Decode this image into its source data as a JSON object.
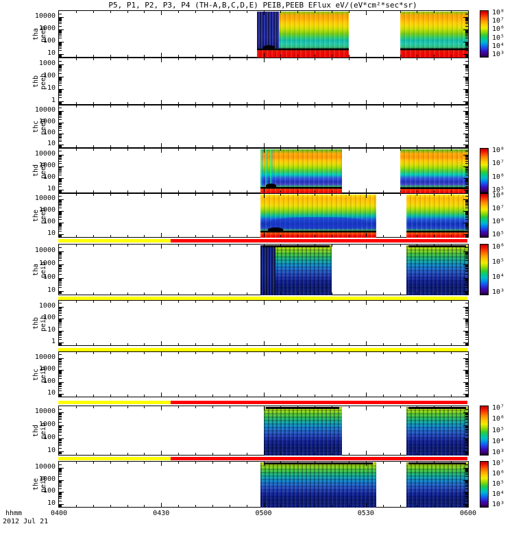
{
  "chart_data": {
    "type": "heatmap",
    "title": "P5, P1, P2, P3, P4 (TH-A,B,C,D,E) PEIB,PEEB EFlux eV/(eV*cm²*sec*sr)",
    "xlabel": "hhmm",
    "date": "2012 Jul 21",
    "x_ticks": [
      "0400",
      "0430",
      "0500",
      "0530",
      "0600"
    ],
    "x_range_hhmm": [
      "0400",
      "0600"
    ],
    "x_minor_step_min": 5,
    "yscale": "log",
    "legend_position": "right-colorbars",
    "grid": false,
    "panels": [
      {
        "id": "tha-peeb",
        "label_lines": [
          "tha",
          "peeb"
        ],
        "ylabel": "tha peeb",
        "yticks": [
          "10000",
          "1000",
          "100",
          "10"
        ],
        "colorbar_ticks": [
          "10⁸",
          "10⁷",
          "10⁶",
          "10⁵",
          "10⁴",
          "10³"
        ],
        "palette": "peeb1",
        "blocks": [
          {
            "start": "0458",
            "end": "0525",
            "features": [
              "dark-lead",
              "trace",
              "hump"
            ],
            "trace_frac": 0.8
          },
          {
            "start": "0540",
            "end": "0600",
            "features": [
              "trace"
            ],
            "trace_frac": 0.8
          }
        ]
      },
      {
        "id": "thb-peeb",
        "label_lines": [
          "thb",
          "peeb"
        ],
        "ylabel": "thb peeb",
        "yticks": [
          "1000",
          "100",
          "10",
          "1"
        ],
        "colorbar_ticks": null,
        "palette": null,
        "blocks": []
      },
      {
        "id": "thc-peeb",
        "label_lines": [
          "thc",
          "peeb"
        ],
        "ylabel": "thc peeb",
        "yticks": [
          "10000",
          "1000",
          "100",
          "10"
        ],
        "colorbar_ticks": null,
        "palette": null,
        "blocks": []
      },
      {
        "id": "thd-peeb",
        "label_lines": [
          "thd",
          "peeb"
        ],
        "ylabel": "thd peeb",
        "yticks": [
          "10000",
          "1000",
          "100",
          "10"
        ],
        "colorbar_ticks": [
          "10⁸",
          "10⁷",
          "10⁶",
          "10⁵"
        ],
        "palette": "peeb",
        "blocks": [
          {
            "start": "0459",
            "end": "0523",
            "features": [
              "streaks",
              "trace",
              "hump"
            ],
            "trace_frac": 0.86
          },
          {
            "start": "0540",
            "end": "0600",
            "features": [
              "trace"
            ],
            "trace_frac": 0.88
          }
        ]
      },
      {
        "id": "the-peeb",
        "label_lines": [
          "the",
          "peeb"
        ],
        "ylabel": "the peeb",
        "yticks": [
          "10000",
          "1000",
          "100",
          "10"
        ],
        "colorbar_ticks": [
          "10⁸",
          "10⁷",
          "10⁶",
          "10⁵"
        ],
        "palette": "peeb_dark",
        "blocks": [
          {
            "start": "0459",
            "end": "0533",
            "features": [
              "blue-blob",
              "trace",
              "hump"
            ],
            "trace_frac": 0.84
          },
          {
            "start": "0542",
            "end": "0600",
            "features": [
              "trace"
            ],
            "trace_frac": 0.84
          }
        ]
      },
      {
        "id": "tha-peib",
        "label_lines": [
          "tha",
          "peib"
        ],
        "ylabel": "tha peib",
        "yticks": [
          "10000",
          "1000",
          "100",
          "10"
        ],
        "colorbar_ticks": [
          "10⁶",
          "10⁵",
          "10⁴",
          "10³"
        ],
        "palette": "peib",
        "blocks": [
          {
            "start": "0459",
            "end": "0520",
            "features": [
              "dark-lead-full",
              "topbar"
            ]
          },
          {
            "start": "0542",
            "end": "0600",
            "features": [
              "topbar"
            ]
          }
        ]
      },
      {
        "id": "thb-peib",
        "label_lines": [
          "thb",
          "peib"
        ],
        "ylabel": "thb peib",
        "yticks": [
          "1000",
          "100",
          "10",
          "1"
        ],
        "colorbar_ticks": null,
        "palette": null,
        "blocks": []
      },
      {
        "id": "thc-peib",
        "label_lines": [
          "thc",
          "peib"
        ],
        "ylabel": "thc peib",
        "yticks": [
          "10000",
          "1000",
          "100",
          "10"
        ],
        "colorbar_ticks": null,
        "palette": null,
        "blocks": []
      },
      {
        "id": "thd-peib",
        "label_lines": [
          "thd",
          "peib"
        ],
        "ylabel": "thd peib",
        "yticks": [
          "10000",
          "1000",
          "100",
          "10"
        ],
        "colorbar_ticks": [
          "10⁷",
          "10⁶",
          "10⁵",
          "10⁴",
          "10³"
        ],
        "palette": "peib",
        "blocks": [
          {
            "start": "0500",
            "end": "0523",
            "features": [
              "topbar"
            ]
          },
          {
            "start": "0542",
            "end": "0600",
            "features": [
              "topbar"
            ]
          }
        ]
      },
      {
        "id": "the-peib",
        "label_lines": [
          "the",
          "peib"
        ],
        "ylabel": "the peib",
        "yticks": [
          "10000",
          "1000",
          "100",
          "10"
        ],
        "colorbar_ticks": [
          "10⁷",
          "10⁶",
          "10⁵",
          "10⁴",
          "10³"
        ],
        "palette": "peib",
        "blocks": [
          {
            "start": "0459",
            "end": "0533",
            "features": [
              "topbar"
            ]
          },
          {
            "start": "0542",
            "end": "0600",
            "features": [
              "topbar"
            ]
          }
        ]
      }
    ],
    "mode_bars": [
      {
        "above_panel": "tha-peib",
        "segments": [
          {
            "from": "0400",
            "to": "0433",
            "color": "#ffff00"
          },
          {
            "from": "0433",
            "to": "0600",
            "color": "#ff0000"
          }
        ]
      },
      {
        "above_panel": "thb-peib",
        "segments": [
          {
            "from": "0400",
            "to": "0600",
            "color": "#ffff00"
          }
        ]
      },
      {
        "above_panel": "thc-peib",
        "segments": [
          {
            "from": "0400",
            "to": "0600",
            "color": "#ffff00"
          }
        ]
      },
      {
        "above_panel": "thd-peib",
        "segments": [
          {
            "from": "0400",
            "to": "0433",
            "color": "#ffff00"
          },
          {
            "from": "0433",
            "to": "0600",
            "color": "#ff0000"
          }
        ]
      },
      {
        "above_panel": "the-peib",
        "segments": [
          {
            "from": "0400",
            "to": "0433",
            "color": "#ffff00"
          },
          {
            "from": "0433",
            "to": "0600",
            "color": "#ff0000"
          }
        ]
      }
    ],
    "colors": {
      "background": "#ffffff",
      "axis": "#000000",
      "bar_yellow": "#ffff00",
      "bar_red": "#ff0000"
    }
  }
}
